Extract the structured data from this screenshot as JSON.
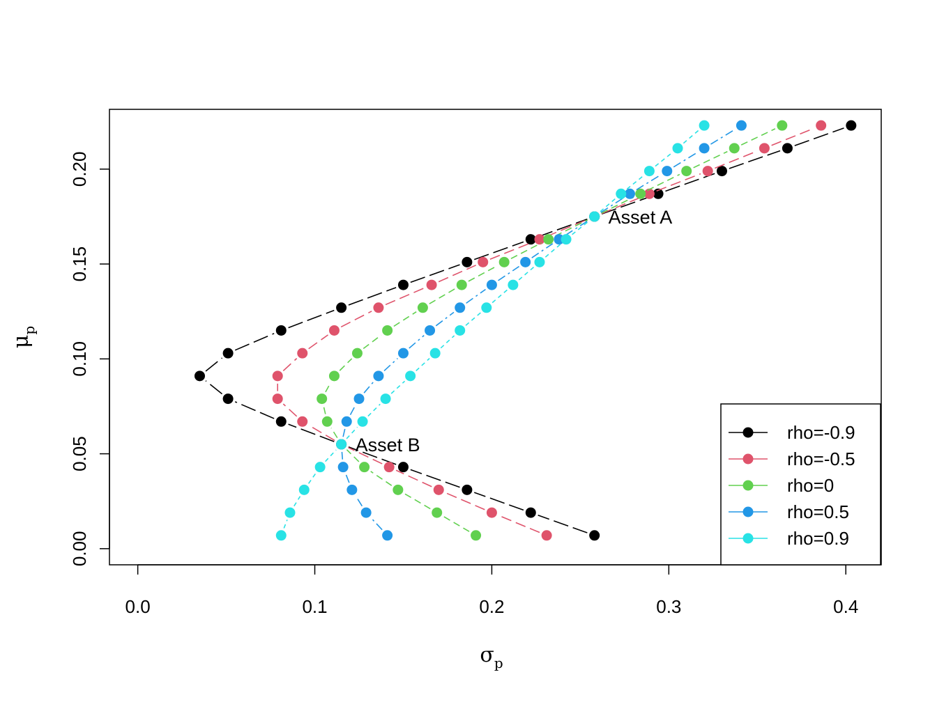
{
  "chart_data": {
    "type": "line",
    "xlabel": "σp",
    "ylabel": "μp",
    "xlim": [
      -0.016,
      0.42
    ],
    "ylim": [
      -0.0085,
      0.2315
    ],
    "x_ticks": [
      "0.0",
      "0.1",
      "0.2",
      "0.3",
      "0.4"
    ],
    "x_tick_values": [
      0.0,
      0.1,
      0.2,
      0.3,
      0.4
    ],
    "y_ticks": [
      "0.00",
      "0.05",
      "0.10",
      "0.15",
      "0.20"
    ],
    "y_tick_values": [
      0.0,
      0.05,
      0.1,
      0.15,
      0.2
    ],
    "grid": false,
    "legend_position": "bottom-right",
    "y_values": [
      0.007,
      0.019,
      0.031,
      0.043,
      0.055,
      0.067,
      0.079,
      0.091,
      0.103,
      0.115,
      0.127,
      0.139,
      0.151,
      0.163,
      0.175,
      0.187,
      0.199,
      0.211,
      0.223
    ],
    "series": [
      {
        "name": "rho=-0.9",
        "color": "#000000",
        "dash": "22,7",
        "x": [
          0.258,
          0.222,
          0.186,
          0.15,
          0.115,
          0.081,
          0.051,
          0.035,
          0.051,
          0.081,
          0.115,
          0.15,
          0.186,
          0.222,
          0.258,
          0.294,
          0.33,
          0.367,
          0.403
        ]
      },
      {
        "name": "rho=-0.5",
        "color": "#DF536B",
        "dash": "15,7",
        "x": [
          0.231,
          0.2,
          0.17,
          0.142,
          0.115,
          0.093,
          0.079,
          0.079,
          0.093,
          0.111,
          0.136,
          0.166,
          0.195,
          0.227,
          0.258,
          0.289,
          0.322,
          0.354,
          0.386
        ]
      },
      {
        "name": "rho=0",
        "color": "#61D04F",
        "dash": "10,6",
        "x": [
          0.191,
          0.169,
          0.147,
          0.128,
          0.115,
          0.107,
          0.104,
          0.111,
          0.124,
          0.141,
          0.161,
          0.183,
          0.207,
          0.232,
          0.258,
          0.284,
          0.31,
          0.337,
          0.364
        ]
      },
      {
        "name": "rho=0.5",
        "color": "#2297E6",
        "dash": "12,5,3,5",
        "x": [
          0.141,
          0.129,
          0.121,
          0.116,
          0.115,
          0.118,
          0.125,
          0.136,
          0.15,
          0.165,
          0.182,
          0.2,
          0.219,
          0.238,
          0.258,
          0.278,
          0.299,
          0.32,
          0.341
        ]
      },
      {
        "name": "rho=0.9",
        "color": "#28E2E5",
        "dash": "6,5",
        "x": [
          0.081,
          0.086,
          0.094,
          0.103,
          0.115,
          0.127,
          0.14,
          0.154,
          0.168,
          0.182,
          0.197,
          0.212,
          0.227,
          0.242,
          0.258,
          0.273,
          0.289,
          0.305,
          0.32
        ]
      }
    ],
    "annotations": [
      {
        "text": "Asset A",
        "x": 0.258,
        "y": 0.175
      },
      {
        "text": "Asset B",
        "x": 0.115,
        "y": 0.055
      }
    ]
  }
}
